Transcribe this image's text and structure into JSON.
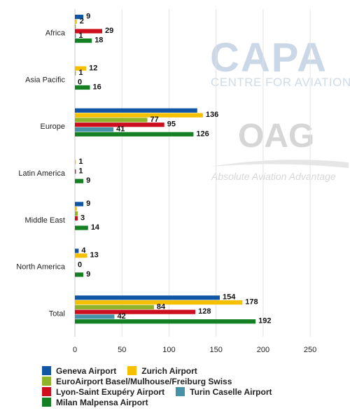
{
  "chart_data": {
    "type": "bar",
    "orientation": "horizontal",
    "categories": [
      "Africa",
      "Asia Pacific",
      "Europe",
      "Latin America",
      "Middle East",
      "North America",
      "Total"
    ],
    "series": [
      {
        "name": "Geneva Airport",
        "color": "#1155a5",
        "values": [
          9,
          null,
          130,
          null,
          9,
          4,
          154
        ],
        "labels": [
          "9",
          "",
          "",
          "",
          "9",
          "4",
          "154"
        ]
      },
      {
        "name": "Zurich Airport",
        "color": "#f5c000",
        "values": [
          2,
          12,
          136,
          1,
          2,
          13,
          178
        ],
        "labels": [
          "2",
          "12",
          "136",
          "1",
          "",
          "13",
          "178"
        ]
      },
      {
        "name": "EuroAirport Basel/Mulhouse/Freiburg Swiss",
        "color": "#8fb42a",
        "values": [
          1,
          1,
          77,
          null,
          3,
          null,
          84
        ],
        "labels": [
          "",
          "1",
          "77",
          "",
          "",
          "",
          "84"
        ]
      },
      {
        "name": "Lyon-Saint Exupéry Airport",
        "color": "#cc0e1e",
        "values": [
          29,
          null,
          95,
          1,
          3,
          0,
          128
        ],
        "labels": [
          "29",
          "",
          "95",
          "1",
          "3",
          "0",
          "128"
        ]
      },
      {
        "name": "Turin Caselle Airport",
        "color": "#4792a8",
        "values": [
          1,
          0,
          41,
          null,
          null,
          null,
          42
        ],
        "labels": [
          "1",
          "0",
          "41",
          "",
          "",
          "",
          "42"
        ]
      },
      {
        "name": "Milan Malpensa Airport",
        "color": "#157f23",
        "values": [
          18,
          16,
          126,
          9,
          14,
          9,
          192
        ],
        "labels": [
          "18",
          "16",
          "126",
          "9",
          "14",
          "9",
          "192"
        ]
      }
    ],
    "xlim": [
      0,
      270
    ],
    "xticks": [
      0,
      50,
      100,
      150,
      200,
      250
    ],
    "grid": true,
    "legend_position": "bottom"
  },
  "watermarks": {
    "capa_title": "CAPA",
    "capa_subtitle": "CENTRE FOR AVIATION",
    "oag_title": "OAG",
    "oag_subtitle": "Absolute Aviation Advantage"
  }
}
